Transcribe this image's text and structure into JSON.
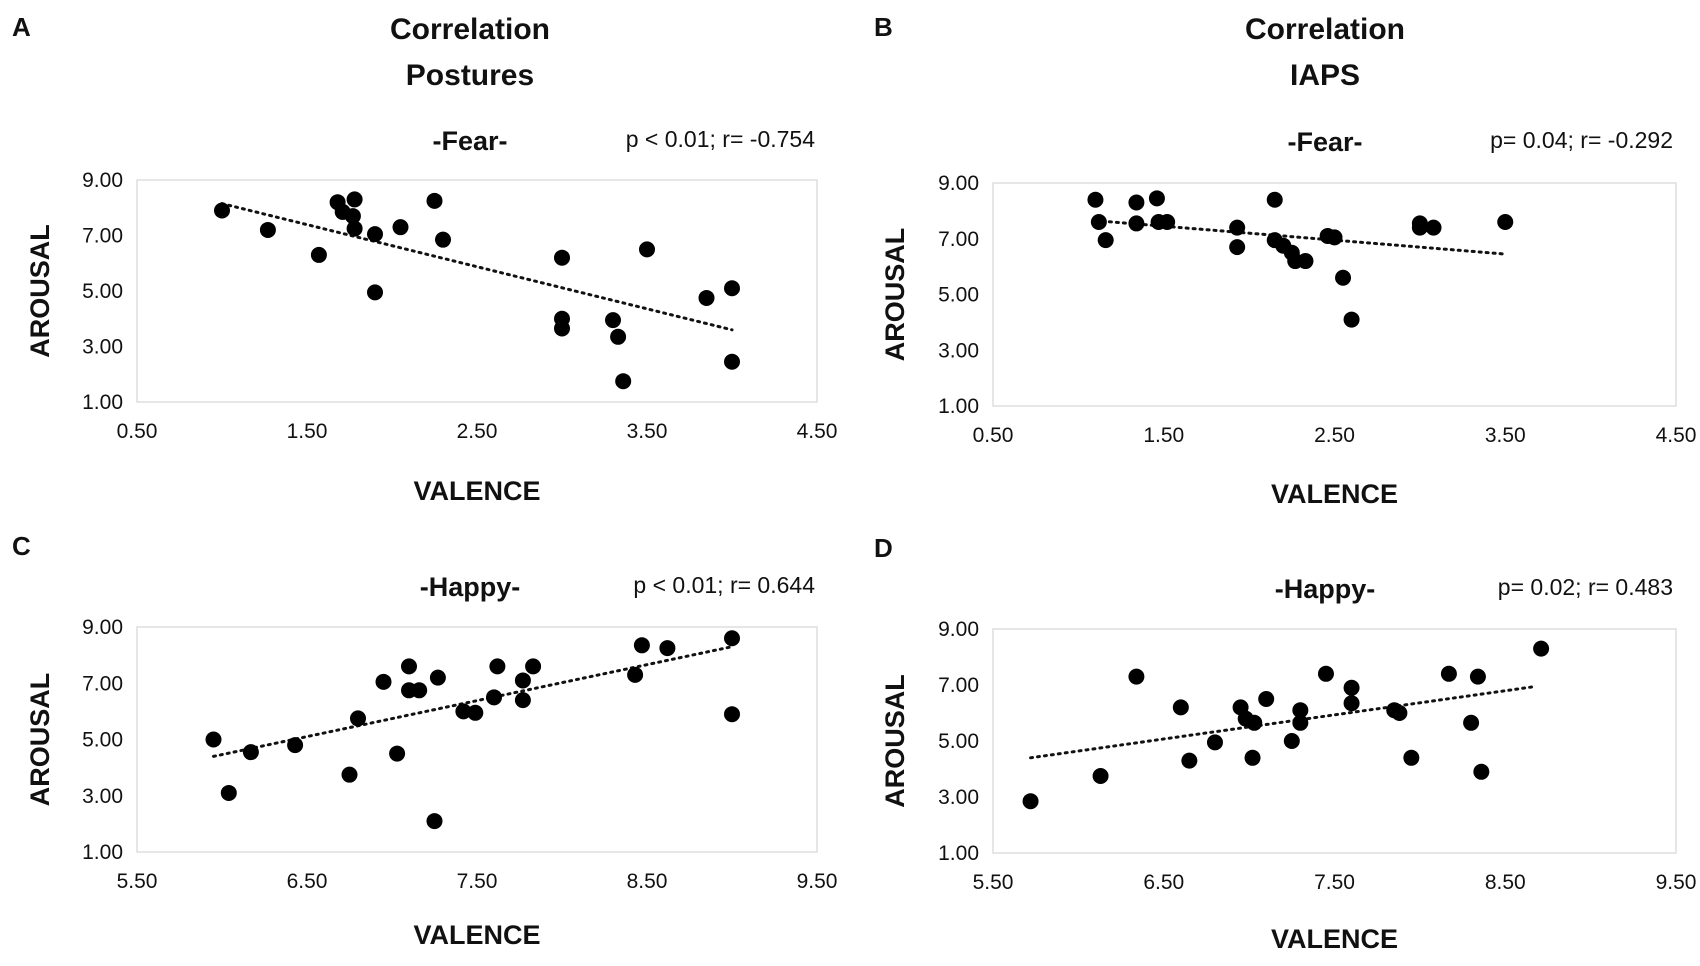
{
  "chart_data": [
    {
      "type": "scatter",
      "panel": "A",
      "title": [
        "Correlation",
        "Postures"
      ],
      "subtitle": "-Fear-",
      "stats": "p < 0.01; r= -0.754",
      "xlabel": "VALENCE",
      "ylabel": "AROUSAL",
      "xlim": [
        0.5,
        4.5
      ],
      "ylim": [
        1.0,
        9.0
      ],
      "xticks": [
        "0.50",
        "1.50",
        "2.50",
        "3.50",
        "4.50"
      ],
      "yticks": [
        "9.00",
        "7.00",
        "5.00",
        "3.00",
        "1.00"
      ],
      "trend": {
        "style": "dotted",
        "x1": 1.0,
        "y1": 8.15,
        "x2": 4.0,
        "y2": 3.6
      },
      "points": [
        {
          "x": 1.0,
          "y": 7.9
        },
        {
          "x": 1.27,
          "y": 7.2
        },
        {
          "x": 1.57,
          "y": 6.3
        },
        {
          "x": 1.68,
          "y": 8.2
        },
        {
          "x": 1.71,
          "y": 7.85
        },
        {
          "x": 1.77,
          "y": 7.7
        },
        {
          "x": 1.78,
          "y": 8.3
        },
        {
          "x": 1.78,
          "y": 7.25
        },
        {
          "x": 1.9,
          "y": 7.05
        },
        {
          "x": 1.9,
          "y": 4.95
        },
        {
          "x": 2.05,
          "y": 7.3
        },
        {
          "x": 2.25,
          "y": 8.25
        },
        {
          "x": 2.3,
          "y": 6.85
        },
        {
          "x": 3.0,
          "y": 6.2
        },
        {
          "x": 3.0,
          "y": 4.0
        },
        {
          "x": 3.0,
          "y": 3.65
        },
        {
          "x": 3.3,
          "y": 3.95
        },
        {
          "x": 3.33,
          "y": 3.35
        },
        {
          "x": 3.36,
          "y": 1.75
        },
        {
          "x": 3.5,
          "y": 6.5
        },
        {
          "x": 3.85,
          "y": 4.75
        },
        {
          "x": 4.0,
          "y": 5.1
        },
        {
          "x": 4.0,
          "y": 2.45
        }
      ]
    },
    {
      "type": "scatter",
      "panel": "B",
      "title": [
        "Correlation",
        "IAPS"
      ],
      "subtitle": "-Fear-",
      "stats": "p= 0.04; r= -0.292",
      "xlabel": "VALENCE",
      "ylabel": "AROUSAL",
      "xlim": [
        0.5,
        4.5
      ],
      "ylim": [
        1.0,
        9.0
      ],
      "xticks": [
        "0.50",
        "1.50",
        "2.50",
        "3.50",
        "4.50"
      ],
      "yticks": [
        "9.00",
        "7.00",
        "5.00",
        "3.00",
        "1.00"
      ],
      "trend": {
        "style": "dotted",
        "x1": 1.1,
        "y1": 7.65,
        "x2": 3.5,
        "y2": 6.45
      },
      "points": [
        {
          "x": 1.1,
          "y": 8.4
        },
        {
          "x": 1.12,
          "y": 7.6
        },
        {
          "x": 1.16,
          "y": 6.95
        },
        {
          "x": 1.34,
          "y": 8.3
        },
        {
          "x": 1.34,
          "y": 7.55
        },
        {
          "x": 1.46,
          "y": 8.45
        },
        {
          "x": 1.47,
          "y": 7.6
        },
        {
          "x": 1.52,
          "y": 7.6
        },
        {
          "x": 1.93,
          "y": 7.4
        },
        {
          "x": 1.93,
          "y": 6.7
        },
        {
          "x": 2.15,
          "y": 8.4
        },
        {
          "x": 2.15,
          "y": 6.95
        },
        {
          "x": 2.2,
          "y": 6.75
        },
        {
          "x": 2.25,
          "y": 6.5
        },
        {
          "x": 2.27,
          "y": 6.2
        },
        {
          "x": 2.33,
          "y": 6.2
        },
        {
          "x": 2.46,
          "y": 7.1
        },
        {
          "x": 2.5,
          "y": 7.05
        },
        {
          "x": 2.55,
          "y": 5.6
        },
        {
          "x": 2.6,
          "y": 4.1
        },
        {
          "x": 3.0,
          "y": 7.55
        },
        {
          "x": 3.0,
          "y": 7.4
        },
        {
          "x": 3.08,
          "y": 7.4
        },
        {
          "x": 3.5,
          "y": 7.6
        }
      ]
    },
    {
      "type": "scatter",
      "panel": "C",
      "title": [],
      "subtitle": "-Happy-",
      "stats": "p < 0.01; r= 0.644",
      "xlabel": "VALENCE",
      "ylabel": "AROUSAL",
      "xlim": [
        5.5,
        9.5
      ],
      "ylim": [
        1.0,
        9.0
      ],
      "xticks": [
        "5.50",
        "6.50",
        "7.50",
        "8.50",
        "9.50"
      ],
      "yticks": [
        "9.00",
        "7.00",
        "5.00",
        "3.00",
        "1.00"
      ],
      "trend": {
        "style": "dotted",
        "x1": 5.95,
        "y1": 4.4,
        "x2": 9.0,
        "y2": 8.3
      },
      "points": [
        {
          "x": 5.95,
          "y": 5.0
        },
        {
          "x": 6.04,
          "y": 3.1
        },
        {
          "x": 6.17,
          "y": 4.55
        },
        {
          "x": 6.43,
          "y": 4.8
        },
        {
          "x": 6.75,
          "y": 3.75
        },
        {
          "x": 6.8,
          "y": 5.75
        },
        {
          "x": 6.95,
          "y": 7.05
        },
        {
          "x": 7.03,
          "y": 4.5
        },
        {
          "x": 7.1,
          "y": 7.6
        },
        {
          "x": 7.1,
          "y": 6.75
        },
        {
          "x": 7.16,
          "y": 6.75
        },
        {
          "x": 7.25,
          "y": 2.1
        },
        {
          "x": 7.27,
          "y": 7.2
        },
        {
          "x": 7.42,
          "y": 6.0
        },
        {
          "x": 7.49,
          "y": 5.95
        },
        {
          "x": 7.6,
          "y": 6.5
        },
        {
          "x": 7.62,
          "y": 7.6
        },
        {
          "x": 7.77,
          "y": 6.4
        },
        {
          "x": 7.77,
          "y": 7.1
        },
        {
          "x": 7.83,
          "y": 7.6
        },
        {
          "x": 8.43,
          "y": 7.3
        },
        {
          "x": 8.47,
          "y": 8.35
        },
        {
          "x": 8.62,
          "y": 8.25
        },
        {
          "x": 9.0,
          "y": 8.6
        },
        {
          "x": 9.0,
          "y": 5.9
        }
      ]
    },
    {
      "type": "scatter",
      "panel": "D",
      "title": [],
      "subtitle": "-Happy-",
      "stats": "p= 0.02; r= 0.483",
      "xlabel": "VALENCE",
      "ylabel": "AROUSAL",
      "xlim": [
        5.5,
        9.5
      ],
      "ylim": [
        1.0,
        9.0
      ],
      "xticks": [
        "5.50",
        "6.50",
        "7.50",
        "8.50",
        "9.50"
      ],
      "yticks": [
        "9.00",
        "7.00",
        "5.00",
        "3.00",
        "1.00"
      ],
      "trend": {
        "style": "dotted",
        "x1": 5.72,
        "y1": 4.4,
        "x2": 8.68,
        "y2": 6.95
      },
      "points": [
        {
          "x": 5.72,
          "y": 2.85
        },
        {
          "x": 6.13,
          "y": 3.75
        },
        {
          "x": 6.34,
          "y": 7.3
        },
        {
          "x": 6.6,
          "y": 6.2
        },
        {
          "x": 6.65,
          "y": 4.3
        },
        {
          "x": 6.8,
          "y": 4.95
        },
        {
          "x": 6.95,
          "y": 6.2
        },
        {
          "x": 6.98,
          "y": 5.8
        },
        {
          "x": 7.02,
          "y": 4.4
        },
        {
          "x": 7.03,
          "y": 5.65
        },
        {
          "x": 7.1,
          "y": 6.5
        },
        {
          "x": 7.25,
          "y": 5.0
        },
        {
          "x": 7.3,
          "y": 6.1
        },
        {
          "x": 7.3,
          "y": 5.65
        },
        {
          "x": 7.45,
          "y": 7.4
        },
        {
          "x": 7.6,
          "y": 6.9
        },
        {
          "x": 7.6,
          "y": 6.35
        },
        {
          "x": 7.85,
          "y": 6.1
        },
        {
          "x": 7.88,
          "y": 6.0
        },
        {
          "x": 7.95,
          "y": 4.4
        },
        {
          "x": 8.17,
          "y": 7.4
        },
        {
          "x": 8.3,
          "y": 5.65
        },
        {
          "x": 8.34,
          "y": 7.3
        },
        {
          "x": 8.36,
          "y": 3.9
        },
        {
          "x": 8.71,
          "y": 8.3
        }
      ]
    }
  ]
}
